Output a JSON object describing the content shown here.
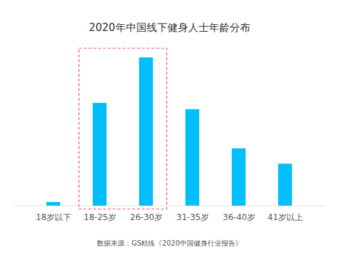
{
  "chart_data": {
    "type": "bar",
    "title": "2020年中国线下健身人士年龄分布",
    "categories": [
      "18岁以下",
      "18-25岁",
      "26-30岁",
      "31-35岁",
      "36-40岁",
      "41岁以上"
    ],
    "values": [
      0.8,
      22.8,
      32.9,
      21.4,
      12.7,
      9.3
    ],
    "color": "#00bffa",
    "ylim": [
      0,
      34
    ],
    "tick_labels": "x",
    "grid": false,
    "source": "数据来源：GS精练《2020中国健身行业报告》"
  }
}
